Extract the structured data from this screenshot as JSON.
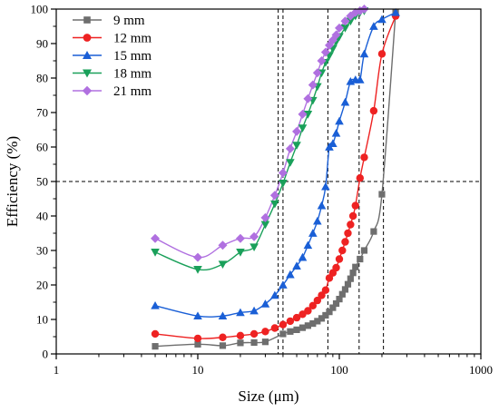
{
  "chart_data": {
    "type": "scatter",
    "title": "",
    "xlabel": "Size (μm)",
    "ylabel": "Efficiency (%)",
    "xscale": "log",
    "xlim": [
      1,
      1000
    ],
    "ylim": [
      0,
      100
    ],
    "xticks": [
      1,
      10,
      100,
      1000
    ],
    "xtick_labels": [
      "1",
      "10",
      "100",
      "1000"
    ],
    "yticks": [
      0,
      10,
      20,
      30,
      40,
      50,
      60,
      70,
      80,
      90,
      100
    ],
    "ytick_labels": [
      "0",
      "10",
      "20",
      "30",
      "40",
      "50",
      "60",
      "70",
      "80",
      "90",
      "100"
    ],
    "grid": false,
    "legend_position": "top-left",
    "reference_lines": {
      "horizontal": [
        50
      ],
      "vertical": [
        37,
        40,
        83,
        138,
        205
      ]
    },
    "series": [
      {
        "name": "9 mm",
        "color": "#6e6e6e",
        "marker": "square",
        "x": [
          5,
          10,
          15,
          20,
          25,
          30,
          40,
          45,
          50,
          55,
          60,
          65,
          70,
          75,
          80,
          85,
          90,
          95,
          100,
          105,
          110,
          115,
          120,
          125,
          130,
          140,
          150,
          175,
          200,
          250
        ],
        "y": [
          2.2,
          2.8,
          2.4,
          3.2,
          3.3,
          3.5,
          5.8,
          6.5,
          7.0,
          7.6,
          8.2,
          8.8,
          9.5,
          10.3,
          11.2,
          12.2,
          13.4,
          14.6,
          15.9,
          17.3,
          18.7,
          20.2,
          21.8,
          23.5,
          25.2,
          27.5,
          30.0,
          35.5,
          46.3,
          99.0
        ]
      },
      {
        "name": "12 mm",
        "color": "#ee2222",
        "marker": "circle",
        "x": [
          5,
          10,
          15,
          20,
          25,
          30,
          35,
          40,
          45,
          50,
          55,
          60,
          65,
          70,
          75,
          80,
          85,
          90,
          95,
          100,
          105,
          110,
          115,
          120,
          125,
          130,
          140,
          150,
          175,
          200,
          250
        ],
        "y": [
          5.8,
          4.5,
          4.8,
          5.3,
          5.8,
          6.5,
          7.5,
          8.5,
          9.5,
          10.5,
          11.5,
          12.5,
          14.0,
          15.5,
          17.0,
          18.5,
          22.0,
          23.5,
          25.0,
          27.5,
          30.0,
          32.5,
          35.0,
          37.5,
          40.0,
          43.0,
          51.0,
          57.0,
          70.5,
          87.0,
          98.0
        ]
      },
      {
        "name": "15 mm",
        "color": "#1a5fd6",
        "marker": "triangle-up",
        "x": [
          5,
          10,
          15,
          20,
          25,
          30,
          35,
          40,
          45,
          50,
          55,
          60,
          65,
          70,
          75,
          80,
          85,
          90,
          95,
          100,
          110,
          120,
          130,
          140,
          150,
          175,
          200,
          250
        ],
        "y": [
          14.0,
          11.0,
          11.0,
          12.0,
          12.5,
          14.5,
          17.0,
          20.0,
          23.0,
          25.5,
          28.0,
          31.5,
          35.0,
          38.5,
          43.0,
          48.5,
          60.0,
          61.0,
          64.0,
          67.5,
          73.0,
          79.0,
          79.5,
          79.5,
          87.0,
          95.0,
          97.0,
          99.0
        ]
      },
      {
        "name": "18 mm",
        "color": "#1aa05a",
        "marker": "triangle-down",
        "x": [
          5,
          10,
          15,
          20,
          25,
          30,
          35,
          40,
          45,
          50,
          55,
          60,
          65,
          70,
          75,
          80,
          85,
          90,
          95,
          100,
          110,
          120,
          130,
          140,
          150
        ],
        "y": [
          29.5,
          24.5,
          26.0,
          29.5,
          31.0,
          37.5,
          43.5,
          49.5,
          55.5,
          60.5,
          65.5,
          69.5,
          73.5,
          77.5,
          81.5,
          84.5,
          86.5,
          88.5,
          90.5,
          92.0,
          94.5,
          96.5,
          98.0,
          99.0,
          99.5
        ]
      },
      {
        "name": "21 mm",
        "color": "#b070e0",
        "marker": "diamond",
        "x": [
          5,
          10,
          15,
          20,
          25,
          30,
          35,
          40,
          45,
          50,
          55,
          60,
          65,
          70,
          75,
          80,
          85,
          90,
          95,
          100,
          110,
          120,
          130,
          140,
          150
        ],
        "y": [
          33.5,
          28.0,
          31.5,
          33.5,
          34.0,
          39.5,
          46.0,
          52.5,
          59.5,
          64.5,
          69.5,
          74.0,
          78.0,
          81.5,
          85.0,
          87.5,
          89.5,
          91.0,
          92.5,
          94.5,
          96.5,
          98.0,
          99.0,
          99.5,
          100.0
        ]
      }
    ]
  }
}
